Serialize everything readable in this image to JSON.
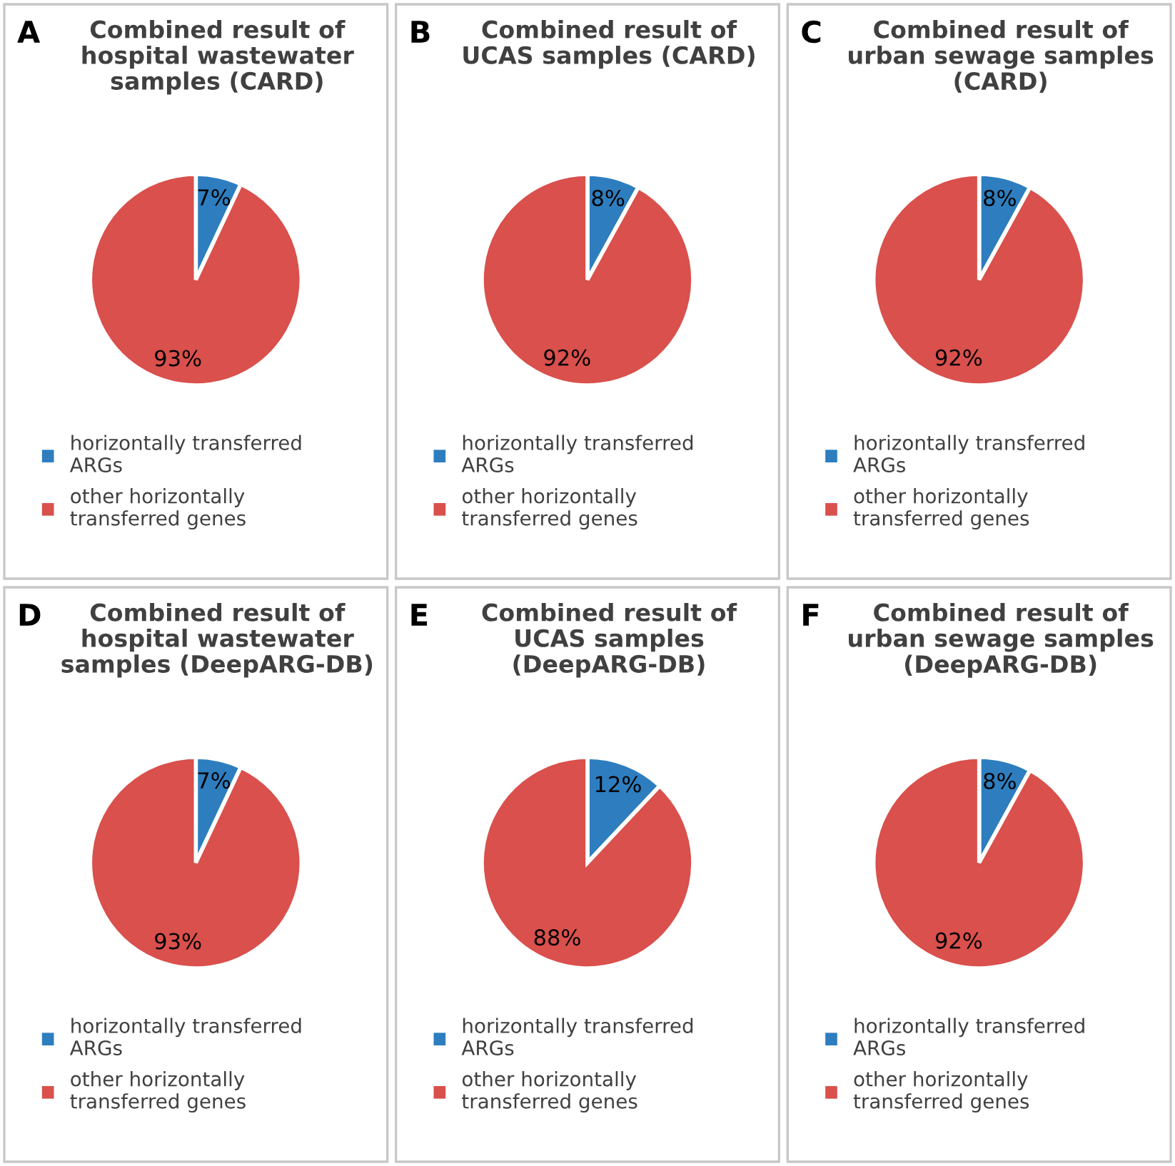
{
  "chart_data": [
    {
      "type": "pie",
      "title": "Combined result of hospital wastewater samples (CARD)",
      "annotations": [
        "A"
      ],
      "categories": [
        "horizontally transferred ARGs",
        "other horizontally transferred genes"
      ],
      "values": [
        7,
        93
      ],
      "value_labels": [
        "7%",
        "93%"
      ],
      "colors": [
        "#2e7ebf",
        "#d9504c"
      ],
      "legend": "bottom"
    },
    {
      "type": "pie",
      "title": "Combined result of UCAS samples (CARD)",
      "annotations": [
        "B"
      ],
      "categories": [
        "horizontally transferred ARGs",
        "other horizontally transferred genes"
      ],
      "values": [
        8,
        92
      ],
      "value_labels": [
        "8%",
        "92%"
      ],
      "colors": [
        "#2e7ebf",
        "#d9504c"
      ],
      "legend": "bottom"
    },
    {
      "type": "pie",
      "title": "Combined result of urban sewage samples (CARD)",
      "annotations": [
        "C"
      ],
      "categories": [
        "horizontally transferred ARGs",
        "other horizontally transferred genes"
      ],
      "values": [
        8,
        92
      ],
      "value_labels": [
        "8%",
        "92%"
      ],
      "colors": [
        "#2e7ebf",
        "#d9504c"
      ],
      "legend": "bottom"
    },
    {
      "type": "pie",
      "title": "Combined result of hospital wastewater samples (DeepARG-DB)",
      "annotations": [
        "D"
      ],
      "categories": [
        "horizontally transferred ARGs",
        "other horizontally transferred genes"
      ],
      "values": [
        7,
        93
      ],
      "value_labels": [
        "7%",
        "93%"
      ],
      "colors": [
        "#2e7ebf",
        "#d9504c"
      ],
      "legend": "bottom"
    },
    {
      "type": "pie",
      "title": "Combined result of UCAS samples (DeepARG-DB)",
      "annotations": [
        "E"
      ],
      "categories": [
        "horizontally transferred ARGs",
        "other horizontally transferred genes"
      ],
      "values": [
        12,
        88
      ],
      "value_labels": [
        "12%",
        "88%"
      ],
      "colors": [
        "#2e7ebf",
        "#d9504c"
      ],
      "legend": "bottom"
    },
    {
      "type": "pie",
      "title": "Combined result of urban sewage samples (DeepARG-DB)",
      "annotations": [
        "F"
      ],
      "categories": [
        "horizontally transferred ARGs",
        "other horizontally transferred genes"
      ],
      "values": [
        8,
        92
      ],
      "value_labels": [
        "8%",
        "92%"
      ],
      "colors": [
        "#2e7ebf",
        "#d9504c"
      ],
      "legend": "bottom"
    }
  ]
}
